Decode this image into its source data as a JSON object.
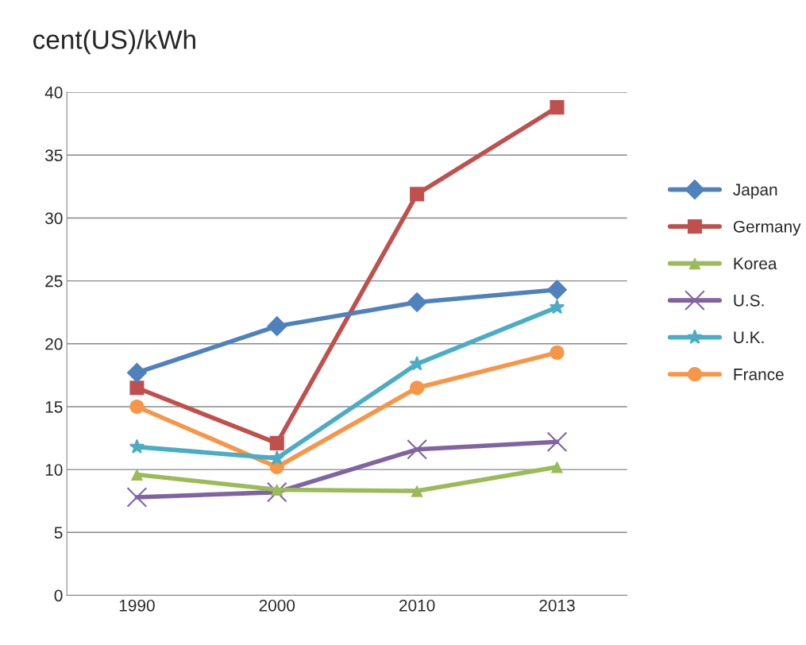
{
  "chart_data": {
    "type": "line",
    "ylabel": "cent(US)/kWh",
    "categories": [
      "1990",
      "2000",
      "2010",
      "2013"
    ],
    "series": [
      {
        "name": "Japan",
        "color": "#4f81bd",
        "marker": "diamond",
        "values": [
          17.7,
          21.4,
          23.3,
          24.3
        ]
      },
      {
        "name": "Germany",
        "color": "#c0504d",
        "marker": "square",
        "values": [
          16.5,
          12.1,
          31.9,
          38.8
        ]
      },
      {
        "name": "Korea",
        "color": "#9bbb59",
        "marker": "triangle",
        "values": [
          9.6,
          8.4,
          8.3,
          10.2
        ]
      },
      {
        "name": "U.S.",
        "color": "#8064a2",
        "marker": "cross",
        "values": [
          7.8,
          8.2,
          11.6,
          12.2
        ]
      },
      {
        "name": "U.K.",
        "color": "#4bacc6",
        "marker": "star",
        "values": [
          11.8,
          10.9,
          18.4,
          22.9
        ]
      },
      {
        "name": "France",
        "color": "#f79646",
        "marker": "circle",
        "values": [
          15.0,
          10.2,
          16.5,
          19.3
        ]
      }
    ],
    "ylim": [
      0,
      40
    ],
    "yticks": [
      0,
      5,
      10,
      15,
      20,
      25,
      30,
      35,
      40
    ],
    "grid": "y",
    "legend": "right",
    "line_style": "solid"
  }
}
